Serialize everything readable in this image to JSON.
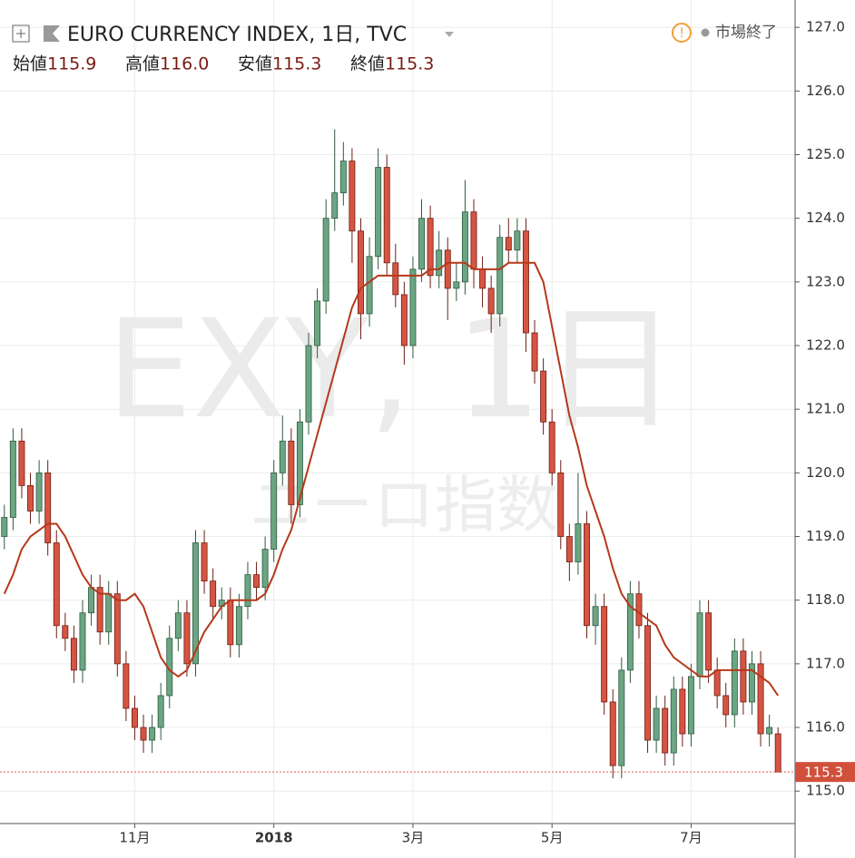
{
  "header": {
    "title": "EURO CURRENCY INDEX, 1日, TVC",
    "open_label": "始値",
    "high_label": "高値",
    "low_label": "安値",
    "close_label": "終値",
    "status": "市場終了"
  },
  "watermark": {
    "symbol": "EXY, 1日",
    "name": "ユーロ指数"
  },
  "chart_data": {
    "type": "candlestick",
    "categories": [
      null,
      null,
      null,
      null,
      null,
      null,
      null,
      null,
      null,
      null,
      null,
      null,
      null,
      null,
      null,
      "11月",
      null,
      null,
      null,
      null,
      null,
      null,
      null,
      null,
      null,
      null,
      null,
      null,
      null,
      null,
      null,
      "2018",
      null,
      null,
      null,
      null,
      null,
      null,
      null,
      null,
      null,
      null,
      null,
      null,
      null,
      null,
      null,
      "3月",
      null,
      null,
      null,
      null,
      null,
      null,
      null,
      null,
      null,
      null,
      null,
      null,
      null,
      null,
      null,
      "5月",
      null,
      null,
      null,
      null,
      null,
      null,
      null,
      null,
      null,
      null,
      null,
      null,
      null,
      null,
      null,
      "7月",
      null,
      null,
      null,
      null,
      null,
      null,
      null,
      null,
      null,
      null
    ],
    "series": [
      {
        "up_color": "#6ba583",
        "down_color": "#d75442",
        "open": [
          119.0,
          119.3,
          120.5,
          119.8,
          119.4,
          120.0,
          118.9,
          117.6,
          117.4,
          116.9,
          117.8,
          118.2,
          117.5,
          118.1,
          117.0,
          116.3,
          116.0,
          115.8,
          116.0,
          116.5,
          117.4,
          117.8,
          117.0,
          118.9,
          118.3,
          117.9,
          118.0,
          117.3,
          117.9,
          118.4,
          118.2,
          118.8,
          120.0,
          120.5,
          119.5,
          120.8,
          122.0,
          122.7,
          124.0,
          124.4,
          124.9,
          123.8,
          122.5,
          123.4,
          124.8,
          123.3,
          122.8,
          122.0,
          123.2,
          124.0,
          123.1,
          123.5,
          122.9,
          123.0,
          124.1,
          123.2,
          122.9,
          122.5,
          123.7,
          123.5,
          123.8,
          122.2,
          121.6,
          120.8,
          120.0,
          119.0,
          118.6,
          119.2,
          117.6,
          117.9,
          116.4,
          115.4,
          116.9,
          118.1,
          117.6,
          115.8,
          116.3,
          115.6,
          116.6,
          115.9,
          116.8,
          117.8,
          116.9,
          116.5,
          116.2,
          117.2,
          116.4,
          117.0,
          115.9,
          115.9
        ],
        "high": [
          119.5,
          120.7,
          120.7,
          120.0,
          120.2,
          120.2,
          119.1,
          117.8,
          117.6,
          118.0,
          118.4,
          118.4,
          118.3,
          118.3,
          117.2,
          116.5,
          116.2,
          116.2,
          116.7,
          117.6,
          118.0,
          118.0,
          119.1,
          119.1,
          118.5,
          118.2,
          118.2,
          118.1,
          118.6,
          118.6,
          119.0,
          120.2,
          120.9,
          120.7,
          121.0,
          122.2,
          122.9,
          124.3,
          125.4,
          125.2,
          125.1,
          124.0,
          123.7,
          125.1,
          125.0,
          123.6,
          123.0,
          123.4,
          124.3,
          124.2,
          123.8,
          123.7,
          123.3,
          124.6,
          124.3,
          123.4,
          123.1,
          123.9,
          124.0,
          124.0,
          124.0,
          122.4,
          121.8,
          121.0,
          120.2,
          119.2,
          120.0,
          119.4,
          118.1,
          118.1,
          116.6,
          117.1,
          118.3,
          118.3,
          117.8,
          116.5,
          116.5,
          116.8,
          116.8,
          117.0,
          118.0,
          118.0,
          117.1,
          116.7,
          117.4,
          117.4,
          117.2,
          117.2,
          116.2,
          116.0
        ],
        "low": [
          118.8,
          119.1,
          119.6,
          119.2,
          119.2,
          118.7,
          117.4,
          117.2,
          116.7,
          116.7,
          117.6,
          117.3,
          117.3,
          116.8,
          116.1,
          115.8,
          115.6,
          115.6,
          115.8,
          116.3,
          117.2,
          116.8,
          116.8,
          118.1,
          117.7,
          117.7,
          117.1,
          117.1,
          117.7,
          118.0,
          118.0,
          118.6,
          119.8,
          119.2,
          119.3,
          120.6,
          121.8,
          122.5,
          123.8,
          124.2,
          123.3,
          122.1,
          122.3,
          123.2,
          123.1,
          122.6,
          121.7,
          121.8,
          123.0,
          122.9,
          122.9,
          122.4,
          122.7,
          122.8,
          122.9,
          122.6,
          122.2,
          122.3,
          123.3,
          123.3,
          121.9,
          121.4,
          120.6,
          119.8,
          118.8,
          118.3,
          118.4,
          117.4,
          117.3,
          116.2,
          115.2,
          115.2,
          116.7,
          117.4,
          115.6,
          115.6,
          115.4,
          115.4,
          115.7,
          115.7,
          116.6,
          116.7,
          116.3,
          116.0,
          116.0,
          116.2,
          116.2,
          115.7,
          115.7,
          115.3
        ],
        "close": [
          119.3,
          120.5,
          119.8,
          119.4,
          120.0,
          118.9,
          117.6,
          117.4,
          116.9,
          117.8,
          118.2,
          117.5,
          118.1,
          117.0,
          116.3,
          116.0,
          115.8,
          116.0,
          116.5,
          117.4,
          117.8,
          117.0,
          118.9,
          118.3,
          117.9,
          118.0,
          117.3,
          117.9,
          118.4,
          118.2,
          118.8,
          120.0,
          120.5,
          119.5,
          120.8,
          122.0,
          122.7,
          124.0,
          124.4,
          124.9,
          123.8,
          122.5,
          123.4,
          124.8,
          123.3,
          122.8,
          122.0,
          123.2,
          124.0,
          123.1,
          123.5,
          122.9,
          123.0,
          124.1,
          123.2,
          122.9,
          122.5,
          123.7,
          123.5,
          123.8,
          122.2,
          121.6,
          120.8,
          120.0,
          119.0,
          118.6,
          119.2,
          117.6,
          117.9,
          116.4,
          115.4,
          116.9,
          118.1,
          117.6,
          115.8,
          116.3,
          115.6,
          116.6,
          115.9,
          116.8,
          117.8,
          116.9,
          116.5,
          116.2,
          117.2,
          116.4,
          117.0,
          115.9,
          116.0,
          115.3
        ]
      },
      {
        "type": "line",
        "color": "#b5391a",
        "values": [
          118.1,
          118.4,
          118.8,
          119.0,
          119.1,
          119.2,
          119.2,
          119.0,
          118.7,
          118.4,
          118.2,
          118.1,
          118.1,
          118.0,
          118.0,
          118.1,
          117.9,
          117.5,
          117.1,
          116.9,
          116.8,
          116.9,
          117.2,
          117.5,
          117.7,
          117.9,
          118.0,
          118.0,
          118.0,
          118.0,
          118.1,
          118.4,
          118.8,
          119.1,
          119.6,
          120.1,
          120.6,
          121.1,
          121.6,
          122.1,
          122.6,
          122.9,
          123.0,
          123.1,
          123.1,
          123.1,
          123.1,
          123.1,
          123.1,
          123.2,
          123.2,
          123.3,
          123.3,
          123.3,
          123.2,
          123.2,
          123.2,
          123.2,
          123.3,
          123.3,
          123.3,
          123.3,
          123.0,
          122.3,
          121.6,
          120.9,
          120.4,
          119.8,
          119.4,
          119.0,
          118.5,
          118.1,
          117.9,
          117.8,
          117.7,
          117.6,
          117.3,
          117.1,
          117.0,
          116.9,
          116.8,
          116.8,
          116.9,
          116.9,
          116.9,
          116.9,
          116.9,
          116.8,
          116.7,
          116.5
        ]
      }
    ],
    "ylim": [
      114.49,
      127.43
    ],
    "yticks": [
      {
        "value": 115,
        "label": "115.0"
      },
      {
        "value": 116,
        "label": "116.0"
      },
      {
        "value": 117,
        "label": "117.0"
      },
      {
        "value": 118,
        "label": "118.0"
      },
      {
        "value": 119,
        "label": "119.0"
      },
      {
        "value": 120,
        "label": "120.0"
      },
      {
        "value": 121,
        "label": "121.0"
      },
      {
        "value": 122,
        "label": "122.0"
      },
      {
        "value": 123,
        "label": "123.0"
      },
      {
        "value": 124,
        "label": "124.0"
      },
      {
        "value": 125,
        "label": "125.0"
      },
      {
        "value": 126,
        "label": "126.0"
      },
      {
        "value": 127,
        "label": "127.0"
      }
    ],
    "grid": true
  }
}
